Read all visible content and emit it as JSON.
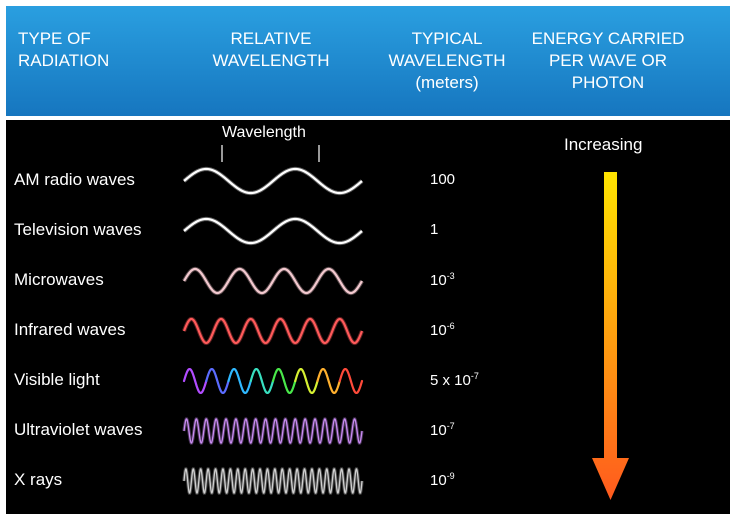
{
  "header": {
    "col1": [
      "TYPE OF",
      "RADIATION"
    ],
    "col2": [
      "RELATIVE",
      "WAVELENGTH"
    ],
    "col3": [
      "TYPICAL",
      "WAVELENGTH",
      "(meters)"
    ],
    "col4": [
      "ENERGY CARRIED",
      "PER WAVE OR",
      "PHOTON"
    ]
  },
  "wavelength_label": "Wavelength",
  "energy_label": "Increasing",
  "rows": [
    {
      "name": "AM radio waves",
      "value_base": "100",
      "value_exp": "",
      "cycles": 2,
      "color": "#ffffff"
    },
    {
      "name": "Television waves",
      "value_base": "1",
      "value_exp": "",
      "cycles": 2,
      "color": "#ffffff"
    },
    {
      "name": "Microwaves",
      "value_base": "10",
      "value_exp": "-3",
      "cycles": 4,
      "color": "#f3c9cf"
    },
    {
      "name": "Infrared waves",
      "value_base": "10",
      "value_exp": "-6",
      "cycles": 6,
      "color": "#ff5a5a"
    },
    {
      "name": "Visible light",
      "value_base": "5 x 10",
      "value_exp": "-7",
      "cycles": 8,
      "color": "rainbow"
    },
    {
      "name": "Ultraviolet waves",
      "value_base": "10",
      "value_exp": "-7",
      "cycles": 18,
      "color": "#c98cf2"
    },
    {
      "name": "X rays",
      "value_base": "10",
      "value_exp": "-9",
      "cycles": 24,
      "color": "#d0d0d0"
    }
  ],
  "colors": {
    "header_top": "#2a9fe0",
    "header_bottom": "#1676bf",
    "panel": "#000000",
    "arrow_top": "#ffe400",
    "arrow_bottom": "#ff5a1e"
  }
}
